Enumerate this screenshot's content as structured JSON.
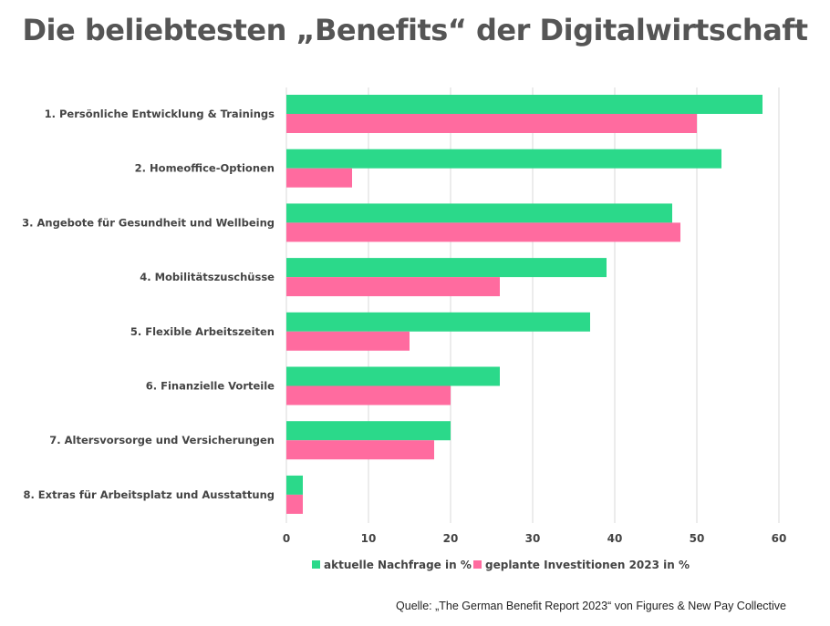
{
  "chart_data": {
    "type": "bar",
    "orientation": "horizontal",
    "title": "Die beliebtesten „Benefits“ der Digitalwirtschaft",
    "categories": [
      "1. Persönliche Entwicklung & Trainings",
      "2. Homeoffice-Optionen",
      "3. Angebote für Gesundheit und Wellbeing",
      "4. Mobilitätszuschüsse",
      "5. Flexible Arbeitszeiten",
      "6. Finanzielle Vorteile",
      "7. Altersvorsorge und Versicherungen",
      "8. Extras für Arbeitsplatz und Ausstattung"
    ],
    "series": [
      {
        "name": "aktuelle Nachfrage in %",
        "color": "#2bd98a",
        "values": [
          58,
          53,
          47,
          39,
          37,
          26,
          20,
          2
        ]
      },
      {
        "name": "geplante Investitionen 2023 in %",
        "color": "#ff6b9f",
        "values": [
          50,
          8,
          48,
          26,
          15,
          20,
          18,
          2
        ]
      }
    ],
    "xlim": [
      0,
      60
    ],
    "xticks": [
      0,
      10,
      20,
      30,
      40,
      50,
      60
    ],
    "grid": true,
    "legend_position": "bottom"
  },
  "source": "Quelle: „The German Benefit Report 2023“ von Figures & New Pay Collective"
}
